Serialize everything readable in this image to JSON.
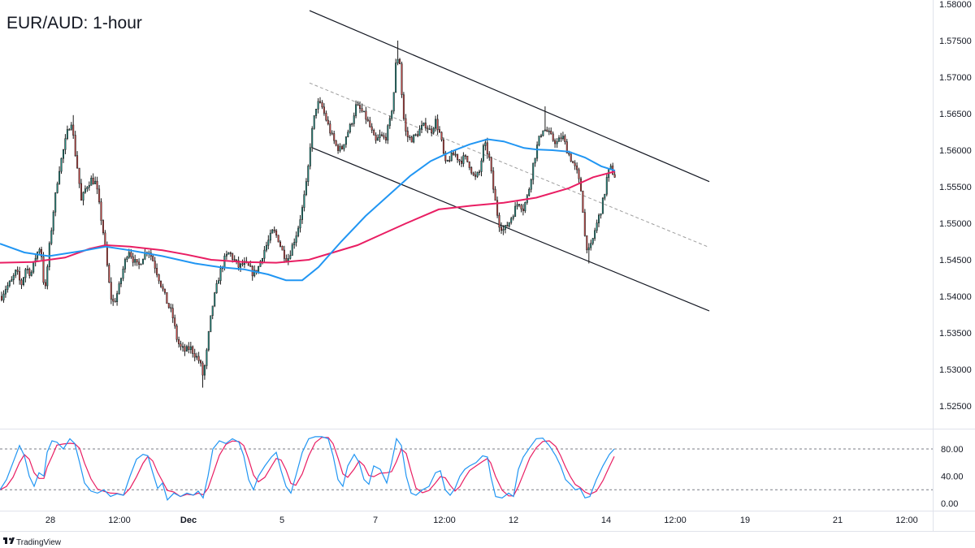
{
  "title": "EUR/AUD: 1-hour",
  "brand": "TradingView",
  "brand_logo": "tradingview-logo-icon",
  "colors": {
    "up": "#26a69a",
    "down": "#ef5350",
    "candle_body": "#1b1b1b",
    "ma_fast": "#2196f3",
    "ma_slow": "#e91e63",
    "channel": "#131722",
    "midline": "#9e9e9e",
    "stoch_k": "#2196f3",
    "stoch_d": "#e91e63"
  },
  "chart_data": [
    {
      "type": "candlestick",
      "instrument": "EUR/AUD",
      "timeframe": "1-hour",
      "y_ticks": [
        "1.52500",
        "1.53000",
        "1.53500",
        "1.54000",
        "1.54500",
        "1.55000",
        "1.55500",
        "1.56000",
        "1.56500",
        "1.57000",
        "1.57500",
        "1.58000"
      ],
      "ylim": [
        1.521,
        1.58
      ],
      "x_ticks": [
        {
          "label": "28",
          "bold": false
        },
        {
          "label": "12:00",
          "bold": false
        },
        {
          "label": "Dec",
          "bold": true
        },
        {
          "label": "5",
          "bold": false
        },
        {
          "label": "7",
          "bold": false
        },
        {
          "label": "12:00",
          "bold": false
        },
        {
          "label": "12",
          "bold": false
        },
        {
          "label": "14",
          "bold": false
        },
        {
          "label": "12:00",
          "bold": false
        },
        {
          "label": "19",
          "bold": false
        },
        {
          "label": "21",
          "bold": false
        },
        {
          "label": "12:00",
          "bold": false
        }
      ],
      "price_path": [
        [
          0,
          1.5395
        ],
        [
          6,
          1.541
        ],
        [
          14,
          1.542
        ],
        [
          20,
          1.5435
        ],
        [
          26,
          1.5415
        ],
        [
          32,
          1.544
        ],
        [
          38,
          1.543
        ],
        [
          44,
          1.5455
        ],
        [
          50,
          1.547
        ],
        [
          55,
          1.54
        ],
        [
          60,
          1.546
        ],
        [
          66,
          1.552
        ],
        [
          72,
          1.557
        ],
        [
          78,
          1.56
        ],
        [
          84,
          1.563
        ],
        [
          88,
          1.564
        ],
        [
          92,
          1.56
        ],
        [
          96,
          1.557
        ],
        [
          100,
          1.553
        ],
        [
          106,
          1.555
        ],
        [
          112,
          1.556
        ],
        [
          118,
          1.5555
        ],
        [
          124,
          1.551
        ],
        [
          128,
          1.548
        ],
        [
          132,
          1.544
        ],
        [
          136,
          1.54
        ],
        [
          140,
          1.539
        ],
        [
          146,
          1.541
        ],
        [
          152,
          1.544
        ],
        [
          158,
          1.5465
        ],
        [
          164,
          1.545
        ],
        [
          170,
          1.544
        ],
        [
          176,
          1.5455
        ],
        [
          182,
          1.5465
        ],
        [
          188,
          1.545
        ],
        [
          194,
          1.543
        ],
        [
          200,
          1.541
        ],
        [
          206,
          1.539
        ],
        [
          212,
          1.5375
        ],
        [
          218,
          1.534
        ],
        [
          222,
          1.533
        ],
        [
          228,
          1.5325
        ],
        [
          234,
          1.533
        ],
        [
          240,
          1.532
        ],
        [
          246,
          1.531
        ],
        [
          250,
          1.529
        ],
        [
          254,
          1.532
        ],
        [
          258,
          1.536
        ],
        [
          262,
          1.539
        ],
        [
          266,
          1.541
        ],
        [
          270,
          1.543
        ],
        [
          276,
          1.545
        ],
        [
          282,
          1.546
        ],
        [
          288,
          1.545
        ],
        [
          294,
          1.544
        ],
        [
          300,
          1.5445
        ],
        [
          306,
          1.544
        ],
        [
          312,
          1.543
        ],
        [
          318,
          1.544
        ],
        [
          324,
          1.546
        ],
        [
          330,
          1.5475
        ],
        [
          336,
          1.549
        ],
        [
          342,
          1.548
        ],
        [
          348,
          1.546
        ],
        [
          354,
          1.545
        ],
        [
          360,
          1.547
        ],
        [
          366,
          1.549
        ],
        [
          372,
          1.552
        ],
        [
          378,
          1.556
        ],
        [
          382,
          1.561
        ],
        [
          386,
          1.564
        ],
        [
          390,
          1.5665
        ],
        [
          396,
          1.566
        ],
        [
          402,
          1.564
        ],
        [
          408,
          1.562
        ],
        [
          414,
          1.5605
        ],
        [
          420,
          1.56
        ],
        [
          426,
          1.562
        ],
        [
          432,
          1.5635
        ],
        [
          438,
          1.566
        ],
        [
          444,
          1.5655
        ],
        [
          450,
          1.5645
        ],
        [
          456,
          1.563
        ],
        [
          462,
          1.561
        ],
        [
          468,
          1.562
        ],
        [
          474,
          1.5615
        ],
        [
          480,
          1.564
        ],
        [
          484,
          1.567
        ],
        [
          488,
          1.573
        ],
        [
          492,
          1.572
        ],
        [
          496,
          1.565
        ],
        [
          500,
          1.562
        ],
        [
          506,
          1.5615
        ],
        [
          512,
          1.562
        ],
        [
          518,
          1.563
        ],
        [
          524,
          1.5635
        ],
        [
          530,
          1.5625
        ],
        [
          536,
          1.564
        ],
        [
          542,
          1.562
        ],
        [
          548,
          1.558
        ],
        [
          554,
          1.559
        ],
        [
          560,
          1.5595
        ],
        [
          566,
          1.5585
        ],
        [
          572,
          1.559
        ],
        [
          578,
          1.558
        ],
        [
          584,
          1.556
        ],
        [
          590,
          1.557
        ],
        [
          596,
          1.561
        ],
        [
          602,
          1.559
        ],
        [
          608,
          1.554
        ],
        [
          614,
          1.55
        ],
        [
          620,
          1.549
        ],
        [
          626,
          1.55
        ],
        [
          632,
          1.5515
        ],
        [
          638,
          1.553
        ],
        [
          644,
          1.552
        ],
        [
          650,
          1.554
        ],
        [
          656,
          1.558
        ],
        [
          662,
          1.561
        ],
        [
          668,
          1.563
        ],
        [
          674,
          1.5625
        ],
        [
          680,
          1.5615
        ],
        [
          686,
          1.561
        ],
        [
          692,
          1.562
        ],
        [
          698,
          1.56
        ],
        [
          704,
          1.5585
        ],
        [
          710,
          1.557
        ],
        [
          716,
          1.554
        ],
        [
          720,
          1.548
        ],
        [
          724,
          1.546
        ],
        [
          728,
          1.547
        ],
        [
          732,
          1.549
        ],
        [
          736,
          1.5505
        ],
        [
          740,
          1.552
        ],
        [
          744,
          1.554
        ],
        [
          748,
          1.557
        ],
        [
          752,
          1.5575
        ],
        [
          756,
          1.5565
        ]
      ],
      "extremes": [
        [
          90,
          1.5648
        ],
        [
          250,
          1.5275
        ],
        [
          490,
          1.575
        ],
        [
          670,
          1.566
        ],
        [
          724,
          1.5445
        ]
      ],
      "ma_fast": [
        [
          0,
          1.5472
        ],
        [
          30,
          1.546
        ],
        [
          60,
          1.5455
        ],
        [
          100,
          1.5462
        ],
        [
          130,
          1.5468
        ],
        [
          160,
          1.5463
        ],
        [
          200,
          1.5455
        ],
        [
          240,
          1.5445
        ],
        [
          270,
          1.544
        ],
        [
          300,
          1.5437
        ],
        [
          330,
          1.543
        ],
        [
          352,
          1.5422
        ],
        [
          372,
          1.5422
        ],
        [
          392,
          1.544
        ],
        [
          420,
          1.5475
        ],
        [
          450,
          1.551
        ],
        [
          480,
          1.554
        ],
        [
          505,
          1.5565
        ],
        [
          530,
          1.5585
        ],
        [
          555,
          1.5598
        ],
        [
          578,
          1.5608
        ],
        [
          600,
          1.5615
        ],
        [
          620,
          1.5612
        ],
        [
          645,
          1.5603
        ],
        [
          660,
          1.5601
        ],
        [
          680,
          1.56
        ],
        [
          700,
          1.5598
        ],
        [
          720,
          1.559
        ],
        [
          740,
          1.5578
        ],
        [
          757,
          1.5572
        ]
      ],
      "ma_slow": [
        [
          0,
          1.5446
        ],
        [
          40,
          1.5447
        ],
        [
          80,
          1.5453
        ],
        [
          110,
          1.5465
        ],
        [
          130,
          1.547
        ],
        [
          160,
          1.5468
        ],
        [
          200,
          1.5463
        ],
        [
          230,
          1.5457
        ],
        [
          260,
          1.545
        ],
        [
          300,
          1.5447
        ],
        [
          340,
          1.5446
        ],
        [
          380,
          1.545
        ],
        [
          410,
          1.546
        ],
        [
          440,
          1.547
        ],
        [
          470,
          1.5485
        ],
        [
          500,
          1.55
        ],
        [
          540,
          1.5519
        ],
        [
          580,
          1.5524
        ],
        [
          620,
          1.5528
        ],
        [
          660,
          1.5535
        ],
        [
          700,
          1.5548
        ],
        [
          730,
          1.5563
        ],
        [
          757,
          1.5571
        ]
      ],
      "channel_upper": [
        [
          381,
          1.5791
        ],
        [
          873,
          1.5557
        ]
      ],
      "channel_lower": [
        [
          385,
          1.5603
        ],
        [
          873,
          1.538
        ]
      ],
      "channel_mid": [
        [
          381,
          1.5692
        ],
        [
          873,
          1.5467
        ]
      ]
    },
    {
      "type": "line",
      "indicator": "Stochastic",
      "y_ticks": [
        "80.00",
        "40.00",
        "0.00"
      ],
      "ylim": [
        -10,
        110
      ],
      "levels": [
        80,
        20
      ],
      "k_line": [
        [
          0,
          20
        ],
        [
          8,
          35
        ],
        [
          16,
          60
        ],
        [
          24,
          85
        ],
        [
          30,
          70
        ],
        [
          36,
          40
        ],
        [
          42,
          25
        ],
        [
          48,
          45
        ],
        [
          54,
          40
        ],
        [
          58,
          75
        ],
        [
          64,
          92
        ],
        [
          70,
          90
        ],
        [
          78,
          80
        ],
        [
          86,
          95
        ],
        [
          92,
          88
        ],
        [
          98,
          60
        ],
        [
          104,
          30
        ],
        [
          112,
          18
        ],
        [
          120,
          15
        ],
        [
          128,
          20
        ],
        [
          136,
          10
        ],
        [
          144,
          14
        ],
        [
          152,
          12
        ],
        [
          160,
          40
        ],
        [
          168,
          65
        ],
        [
          176,
          72
        ],
        [
          182,
          70
        ],
        [
          188,
          45
        ],
        [
          194,
          22
        ],
        [
          200,
          30
        ],
        [
          206,
          5
        ],
        [
          214,
          15
        ],
        [
          222,
          10
        ],
        [
          230,
          15
        ],
        [
          238,
          12
        ],
        [
          244,
          18
        ],
        [
          250,
          8
        ],
        [
          256,
          40
        ],
        [
          262,
          80
        ],
        [
          270,
          92
        ],
        [
          278,
          88
        ],
        [
          286,
          95
        ],
        [
          294,
          90
        ],
        [
          300,
          70
        ],
        [
          306,
          35
        ],
        [
          312,
          20
        ],
        [
          318,
          40
        ],
        [
          326,
          55
        ],
        [
          334,
          68
        ],
        [
          340,
          75
        ],
        [
          346,
          48
        ],
        [
          352,
          25
        ],
        [
          358,
          15
        ],
        [
          364,
          40
        ],
        [
          372,
          75
        ],
        [
          380,
          95
        ],
        [
          388,
          98
        ],
        [
          396,
          98
        ],
        [
          404,
          95
        ],
        [
          410,
          70
        ],
        [
          416,
          35
        ],
        [
          422,
          25
        ],
        [
          428,
          55
        ],
        [
          436,
          72
        ],
        [
          442,
          60
        ],
        [
          448,
          35
        ],
        [
          454,
          28
        ],
        [
          460,
          55
        ],
        [
          468,
          50
        ],
        [
          476,
          30
        ],
        [
          482,
          60
        ],
        [
          488,
          95
        ],
        [
          494,
          85
        ],
        [
          500,
          40
        ],
        [
          506,
          15
        ],
        [
          512,
          12
        ],
        [
          520,
          20
        ],
        [
          528,
          25
        ],
        [
          536,
          45
        ],
        [
          542,
          48
        ],
        [
          548,
          20
        ],
        [
          554,
          12
        ],
        [
          560,
          22
        ],
        [
          566,
          40
        ],
        [
          572,
          50
        ],
        [
          578,
          55
        ],
        [
          586,
          60
        ],
        [
          594,
          70
        ],
        [
          600,
          68
        ],
        [
          604,
          40
        ],
        [
          610,
          10
        ],
        [
          618,
          8
        ],
        [
          626,
          15
        ],
        [
          632,
          10
        ],
        [
          638,
          50
        ],
        [
          644,
          68
        ],
        [
          652,
          82
        ],
        [
          660,
          95
        ],
        [
          668,
          96
        ],
        [
          676,
          85
        ],
        [
          684,
          70
        ],
        [
          690,
          55
        ],
        [
          696,
          35
        ],
        [
          702,
          28
        ],
        [
          708,
          20
        ],
        [
          714,
          22
        ],
        [
          720,
          8
        ],
        [
          726,
          10
        ],
        [
          734,
          35
        ],
        [
          742,
          55
        ],
        [
          750,
          72
        ],
        [
          756,
          80
        ]
      ]
    }
  ]
}
